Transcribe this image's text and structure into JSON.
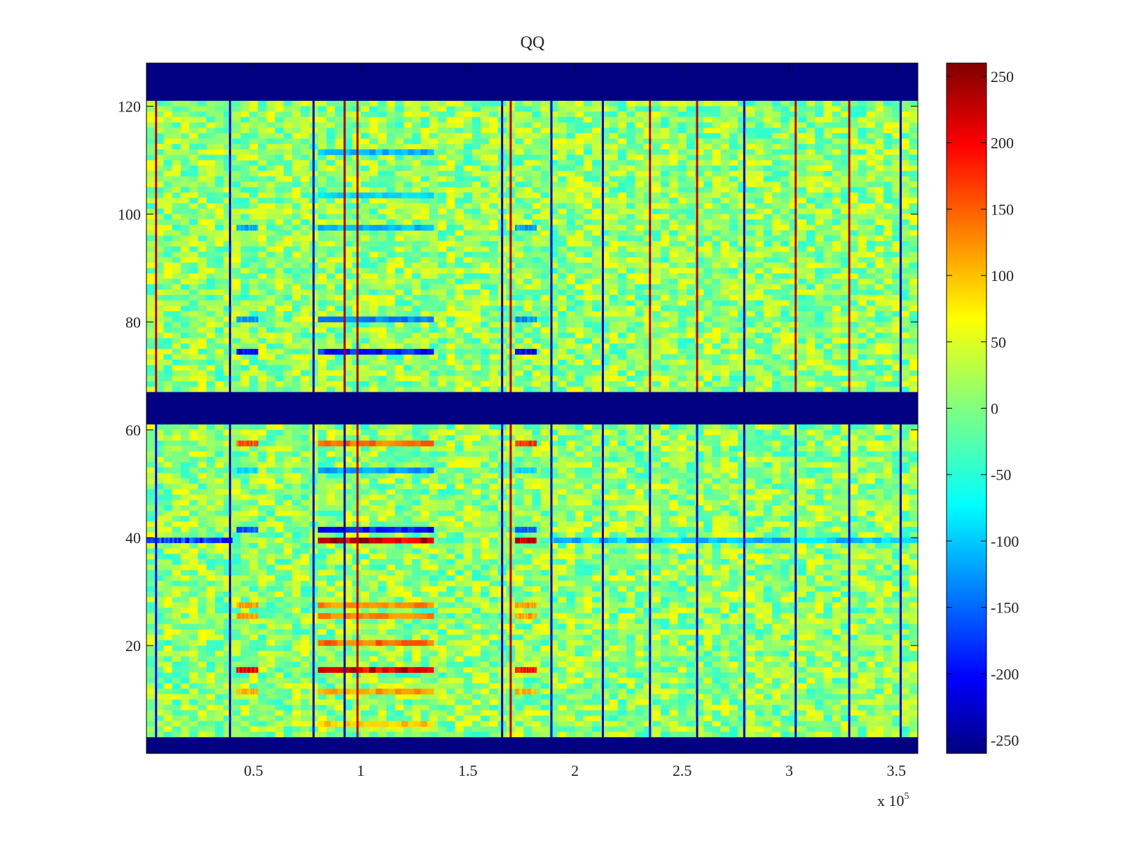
{
  "chart_data": {
    "type": "heatmap",
    "title": "QQ",
    "xlabel": "",
    "ylabel": "",
    "x_multiplier_label": "x 10",
    "x_multiplier_exponent": "5",
    "xlim": [
      0,
      3.6
    ],
    "ylim": [
      0,
      128
    ],
    "x_ticks": [
      0.5,
      1,
      1.5,
      2,
      2.5,
      3,
      3.5
    ],
    "x_tick_labels": [
      "0.5",
      "1",
      "1.5",
      "2",
      "2.5",
      "3",
      "3.5"
    ],
    "y_ticks": [
      20,
      40,
      60,
      80,
      100,
      120
    ],
    "y_tick_labels": [
      "20",
      "40",
      "60",
      "80",
      "100",
      "120"
    ],
    "colormap": "jet",
    "clim": [
      -260,
      260
    ],
    "colorbar_ticks": [
      250,
      200,
      150,
      100,
      50,
      0,
      -50,
      -100,
      -150,
      -200,
      -250
    ],
    "colorbar_tick_labels": [
      "250",
      "200",
      "150",
      "100",
      "50",
      "0",
      "-50",
      "-100",
      "-150",
      "-200",
      "-250"
    ],
    "background_value": 10,
    "masked_row_bands": [
      {
        "y_range": [
          121,
          128
        ],
        "value": -260
      },
      {
        "y_range": [
          61,
          67
        ],
        "value": -260
      },
      {
        "y_range": [
          0,
          3
        ],
        "value": -260
      }
    ],
    "vertical_lines": [
      {
        "x": 0.045,
        "upper_value": 230,
        "lower_value": -210
      },
      {
        "x": 0.39,
        "upper_value": -230,
        "lower_value": -230
      },
      {
        "x": 0.78,
        "upper_value": -230,
        "lower_value": -230
      },
      {
        "x": 0.925,
        "upper_value": 240,
        "lower_value": -240
      },
      {
        "x": 0.985,
        "upper_value": 240,
        "lower_value": 230
      },
      {
        "x": 1.66,
        "upper_value": -230,
        "lower_value": -230
      },
      {
        "x": 1.7,
        "upper_value": 230,
        "lower_value": 230
      },
      {
        "x": 1.89,
        "upper_value": -230,
        "lower_value": -230
      },
      {
        "x": 2.13,
        "upper_value": -230,
        "lower_value": -230
      },
      {
        "x": 2.35,
        "upper_value": 230,
        "lower_value": -220
      },
      {
        "x": 2.57,
        "upper_value": 230,
        "lower_value": -230
      },
      {
        "x": 2.79,
        "upper_value": -230,
        "lower_value": -230
      },
      {
        "x": 3.03,
        "upper_value": 230,
        "lower_value": -230
      },
      {
        "x": 3.28,
        "upper_value": 230,
        "lower_value": -220
      },
      {
        "x": 3.52,
        "upper_value": -230,
        "lower_value": -230
      }
    ],
    "activity_blocks": [
      {
        "x_range": [
          0.42,
          0.52
        ],
        "rows": [
          {
            "y": 57,
            "value": 170
          },
          {
            "y": 52,
            "value": -90
          },
          {
            "y": 41,
            "value": -160
          },
          {
            "y": 27,
            "value": 120
          },
          {
            "y": 25,
            "value": 120
          },
          {
            "y": 15,
            "value": 220
          },
          {
            "y": 11,
            "value": 110
          },
          {
            "y": 74,
            "value": -220
          },
          {
            "y": 80,
            "value": -130
          },
          {
            "y": 97,
            "value": -120
          },
          {
            "y": 110,
            "value": 60
          }
        ]
      },
      {
        "x_range": [
          0.8,
          1.34
        ],
        "rows": [
          {
            "y": 57,
            "value": 150
          },
          {
            "y": 52,
            "value": -120
          },
          {
            "y": 41,
            "value": -200
          },
          {
            "y": 39,
            "value": 240
          },
          {
            "y": 27,
            "value": 130
          },
          {
            "y": 25,
            "value": 130
          },
          {
            "y": 20,
            "value": 150
          },
          {
            "y": 15,
            "value": 230
          },
          {
            "y": 11,
            "value": 120
          },
          {
            "y": 5,
            "value": 100
          },
          {
            "y": 74,
            "value": -200
          },
          {
            "y": 80,
            "value": -140
          },
          {
            "y": 97,
            "value": -110
          },
          {
            "y": 111,
            "value": -110
          },
          {
            "y": 103,
            "value": -90
          }
        ]
      },
      {
        "x_range": [
          1.72,
          1.82
        ],
        "rows": [
          {
            "y": 57,
            "value": 170
          },
          {
            "y": 52,
            "value": -90
          },
          {
            "y": 41,
            "value": -160
          },
          {
            "y": 39,
            "value": 240
          },
          {
            "y": 27,
            "value": 120
          },
          {
            "y": 25,
            "value": 120
          },
          {
            "y": 15,
            "value": 210
          },
          {
            "y": 11,
            "value": 110
          },
          {
            "y": 74,
            "value": -220
          },
          {
            "y": 80,
            "value": -130
          },
          {
            "y": 97,
            "value": -120
          }
        ]
      }
    ],
    "horizontal_stripes": [
      {
        "y": 39,
        "x_range": [
          0.0,
          0.4
        ],
        "value": -200
      },
      {
        "y": 39,
        "x_range": [
          1.9,
          3.6
        ],
        "value": -110
      }
    ]
  }
}
